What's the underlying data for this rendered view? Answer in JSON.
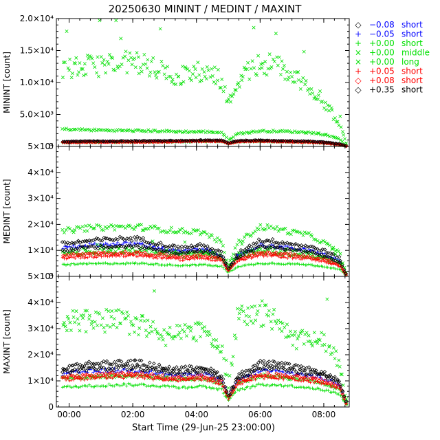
{
  "title": "20250630 MININT / MEDINT / MAXINT",
  "xlabel": "Start Time (29-Jun-25 23:00:00)",
  "colors": {
    "black": "#000000",
    "blue": "#0000ff",
    "green": "#00e000",
    "red": "#ff0000"
  },
  "legend": [
    {
      "sym": "◇",
      "offset": "−0.08",
      "label": "short",
      "color": "#0000ff",
      "symcolor": "#000000"
    },
    {
      "sym": "+",
      "offset": "−0.05",
      "label": "short",
      "color": "#0000ff",
      "symcolor": "#0000ff"
    },
    {
      "sym": "+",
      "offset": "+0.00",
      "label": "short",
      "color": "#00e000",
      "symcolor": "#00e000"
    },
    {
      "sym": "×",
      "offset": "+0.00",
      "label": "middle",
      "color": "#00e000",
      "symcolor": "#00e000"
    },
    {
      "sym": "×",
      "offset": "+0.00",
      "label": "long",
      "color": "#00e000",
      "symcolor": "#00e000"
    },
    {
      "sym": "+",
      "offset": "+0.05",
      "label": "short",
      "color": "#ff0000",
      "symcolor": "#ff0000"
    },
    {
      "sym": "◇",
      "offset": "+0.08",
      "label": "short",
      "color": "#ff0000",
      "symcolor": "#ff0000"
    },
    {
      "sym": "◇",
      "offset": "+0.35",
      "label": "short",
      "color": "#000000",
      "symcolor": "#000000"
    }
  ],
  "chart_data": [
    {
      "type": "scatter",
      "name": "MININT",
      "ylabel": "MININT [count]",
      "ylim": [
        0,
        20000
      ],
      "yticks": [
        0,
        5000,
        10000,
        15000,
        20000
      ],
      "yticklabels": [
        "0",
        "5.0×10³",
        "1.0×10⁴",
        "1.5×10⁴",
        "2.0×10⁴"
      ],
      "xlim": [
        -0.4,
        8.8
      ],
      "xticks": [
        0,
        2,
        4,
        6,
        8
      ],
      "xticklabels": [
        "00:00",
        "02:00",
        "04:00",
        "06:00",
        "08:00"
      ],
      "x_knots": [
        -0.2,
        0.5,
        1.5,
        2.2,
        3.0,
        3.5,
        4.2,
        4.8,
        5.0,
        5.3,
        6.0,
        6.5,
        7.0,
        7.5,
        8.0,
        8.5,
        8.7
      ],
      "series": [
        {
          "name": "-0.08 short",
          "marker": "diamond",
          "color": "#000000",
          "values": [
            700,
            750,
            780,
            800,
            820,
            850,
            900,
            900,
            500,
            850,
            900,
            850,
            800,
            750,
            650,
            350,
            80
          ]
        },
        {
          "name": "-0.05 short",
          "marker": "plus",
          "color": "#0000ff",
          "values": [
            650,
            700,
            720,
            740,
            760,
            800,
            850,
            850,
            450,
            800,
            850,
            800,
            750,
            700,
            600,
            300,
            60
          ]
        },
        {
          "name": "+0.00 short",
          "marker": "plus",
          "color": "#00e000",
          "values": [
            550,
            600,
            620,
            640,
            650,
            700,
            750,
            750,
            400,
            700,
            750,
            700,
            650,
            600,
            500,
            250,
            50
          ]
        },
        {
          "name": "+0.00 middle",
          "marker": "cross",
          "color": "#00e000",
          "values": [
            2700,
            2600,
            2500,
            2450,
            2400,
            2300,
            2300,
            2200,
            1000,
            2000,
            2400,
            2400,
            2300,
            2200,
            1900,
            1200,
            100
          ]
        },
        {
          "name": "+0.00 long",
          "marker": "cross",
          "color": "#00e000",
          "values": [
            12000,
            12500,
            13000,
            13200,
            11500,
            11000,
            11800,
            10500,
            6500,
            10500,
            13000,
            12800,
            11000,
            9500,
            7000,
            3500,
            500
          ]
        },
        {
          "name": "+0.05 short",
          "marker": "plus",
          "color": "#ff0000",
          "values": [
            600,
            650,
            670,
            690,
            700,
            750,
            800,
            800,
            420,
            750,
            800,
            750,
            700,
            650,
            550,
            280,
            55
          ]
        },
        {
          "name": "+0.08 short",
          "marker": "diamond",
          "color": "#ff0000",
          "values": [
            620,
            670,
            690,
            710,
            720,
            770,
            820,
            820,
            440,
            770,
            820,
            770,
            720,
            670,
            570,
            290,
            60
          ]
        },
        {
          "name": "+0.35 short",
          "marker": "diamond",
          "color": "#000000",
          "values": [
            750,
            800,
            830,
            850,
            870,
            900,
            950,
            950,
            550,
            900,
            950,
            900,
            850,
            800,
            700,
            380,
            90
          ]
        }
      ]
    },
    {
      "type": "scatter",
      "name": "MEDINT",
      "ylabel": "MEDINT [count]",
      "ylim": [
        0,
        50000
      ],
      "yticks": [
        0,
        10000,
        20000,
        30000,
        40000,
        50000
      ],
      "yticklabels": [
        "0",
        "1×10⁴",
        "2×10⁴",
        "3×10⁴",
        "4×10⁴",
        "5×10⁴"
      ],
      "xlim": [
        -0.4,
        8.8
      ],
      "xticks": [
        0,
        2,
        4,
        6,
        8
      ],
      "xticklabels": [
        "00:00",
        "02:00",
        "04:00",
        "06:00",
        "08:00"
      ],
      "x_knots": [
        -0.2,
        0.5,
        1.5,
        2.2,
        3.0,
        3.5,
        4.2,
        4.8,
        5.0,
        5.3,
        6.0,
        6.5,
        7.0,
        7.5,
        8.0,
        8.5,
        8.7
      ],
      "series": [
        {
          "name": "-0.08 short",
          "marker": "diamond",
          "color": "#000000",
          "values": [
            12500,
            13500,
            14500,
            14500,
            12000,
            11000,
            12000,
            9000,
            3000,
            9000,
            14000,
            13500,
            12500,
            11500,
            10000,
            7000,
            1000
          ]
        },
        {
          "name": "-0.05 short",
          "marker": "plus",
          "color": "#0000ff",
          "values": [
            11000,
            12000,
            12500,
            12500,
            10500,
            9500,
            10500,
            8000,
            2500,
            8000,
            12000,
            11500,
            10800,
            10000,
            8500,
            6000,
            800
          ]
        },
        {
          "name": "+0.00 short",
          "marker": "plus",
          "color": "#00e000",
          "values": [
            4500,
            4800,
            5000,
            5000,
            4500,
            4200,
            4500,
            3800,
            1500,
            3800,
            5000,
            5000,
            4800,
            4500,
            3800,
            2800,
            400
          ]
        },
        {
          "name": "+0.00 middle",
          "marker": "cross",
          "color": "#00e000",
          "values": [
            17500,
            18500,
            19000,
            19000,
            18000,
            17500,
            17000,
            13000,
            4000,
            13000,
            19000,
            18500,
            17000,
            16000,
            13000,
            9000,
            1500
          ]
        },
        {
          "name": "+0.00 long",
          "marker": "cross",
          "color": "#00e000",
          "values": [
            9000,
            9500,
            10000,
            10000,
            9000,
            8500,
            9000,
            7500,
            3000,
            7500,
            10000,
            9500,
            9000,
            8500,
            7000,
            5000,
            700
          ]
        },
        {
          "name": "+0.05 short",
          "marker": "plus",
          "color": "#ff0000",
          "values": [
            7000,
            7500,
            8000,
            8000,
            7000,
            6500,
            7000,
            6000,
            2000,
            6000,
            8000,
            7800,
            7200,
            6800,
            5800,
            4000,
            500
          ]
        },
        {
          "name": "+0.08 short",
          "marker": "diamond",
          "color": "#ff0000",
          "values": [
            8000,
            8500,
            9000,
            9000,
            8000,
            7500,
            8000,
            6800,
            2300,
            6800,
            9000,
            8800,
            8200,
            7600,
            6500,
            4500,
            600
          ]
        },
        {
          "name": "+0.35 short",
          "marker": "diamond",
          "color": "#000000",
          "values": [
            10000,
            11000,
            11500,
            11500,
            9800,
            9000,
            9800,
            7500,
            2700,
            7500,
            11500,
            11000,
            10300,
            9500,
            8000,
            5500,
            900
          ]
        }
      ]
    },
    {
      "type": "scatter",
      "name": "MAXINT",
      "ylabel": "MAXINT [count]",
      "ylim": [
        0,
        50000
      ],
      "yticks": [
        0,
        10000,
        20000,
        30000,
        40000,
        50000
      ],
      "yticklabels": [
        "0",
        "1×10⁴",
        "2×10⁴",
        "3×10⁴",
        "4×10⁴",
        "5×10⁴"
      ],
      "xlim": [
        -0.4,
        8.8
      ],
      "xticks": [
        0,
        2,
        4,
        6,
        8
      ],
      "xticklabels": [
        "00:00",
        "02:00",
        "04:00",
        "06:00",
        "08:00"
      ],
      "x_knots": [
        -0.2,
        0.5,
        1.5,
        2.2,
        3.0,
        3.5,
        4.2,
        4.8,
        5.0,
        5.3,
        6.0,
        6.5,
        7.0,
        7.5,
        8.0,
        8.5,
        8.7
      ],
      "series": [
        {
          "name": "-0.08 short",
          "marker": "diamond",
          "color": "#000000",
          "values": [
            15000,
            16500,
            17000,
            17000,
            15000,
            14500,
            15500,
            12000,
            4000,
            12000,
            17000,
            16500,
            15500,
            14500,
            13000,
            10000,
            2000
          ]
        },
        {
          "name": "-0.05 short",
          "marker": "plus",
          "color": "#0000ff",
          "values": [
            12500,
            13500,
            14000,
            14000,
            12500,
            12000,
            13000,
            10000,
            3500,
            10000,
            14000,
            13500,
            13000,
            12000,
            11000,
            8500,
            1500
          ]
        },
        {
          "name": "+0.00 short",
          "marker": "plus",
          "color": "#00e000",
          "values": [
            7500,
            8000,
            8500,
            8500,
            8000,
            7500,
            8000,
            6500,
            2500,
            6500,
            8500,
            8500,
            8000,
            7500,
            6500,
            5000,
            1000
          ]
        },
        {
          "name": "+0.00 middle",
          "marker": "cross",
          "color": "#00e000",
          "values": [
            11000,
            11500,
            12000,
            12000,
            11000,
            10500,
            11000,
            9000,
            3000,
            9000,
            12000,
            11800,
            11000,
            10500,
            9000,
            7000,
            1200
          ]
        },
        {
          "name": "+0.00 long",
          "marker": "cross",
          "color": "#00e000",
          "values": [
            32000,
            33500,
            33000,
            31500,
            27000,
            27500,
            30000,
            22000,
            8000,
            34000,
            36000,
            34000,
            25000,
            27000,
            25000,
            17000,
            3000
          ]
        },
        {
          "name": "+0.05 short",
          "marker": "plus",
          "color": "#ff0000",
          "values": [
            10500,
            11000,
            11500,
            11500,
            10500,
            10000,
            10800,
            8500,
            3000,
            8500,
            11500,
            11300,
            10800,
            10000,
            9000,
            7000,
            1300
          ]
        },
        {
          "name": "+0.08 short",
          "marker": "diamond",
          "color": "#ff0000",
          "values": [
            11500,
            12000,
            12500,
            12500,
            11500,
            11000,
            11800,
            9500,
            3300,
            9500,
            12500,
            12300,
            11800,
            11000,
            10000,
            7800,
            1400
          ]
        },
        {
          "name": "+0.35 short",
          "marker": "diamond",
          "color": "#000000",
          "values": [
            13500,
            14500,
            15000,
            15000,
            13500,
            13000,
            14000,
            11000,
            3800,
            11000,
            15000,
            14800,
            14000,
            13000,
            12000,
            9200,
            1800
          ]
        }
      ]
    }
  ]
}
